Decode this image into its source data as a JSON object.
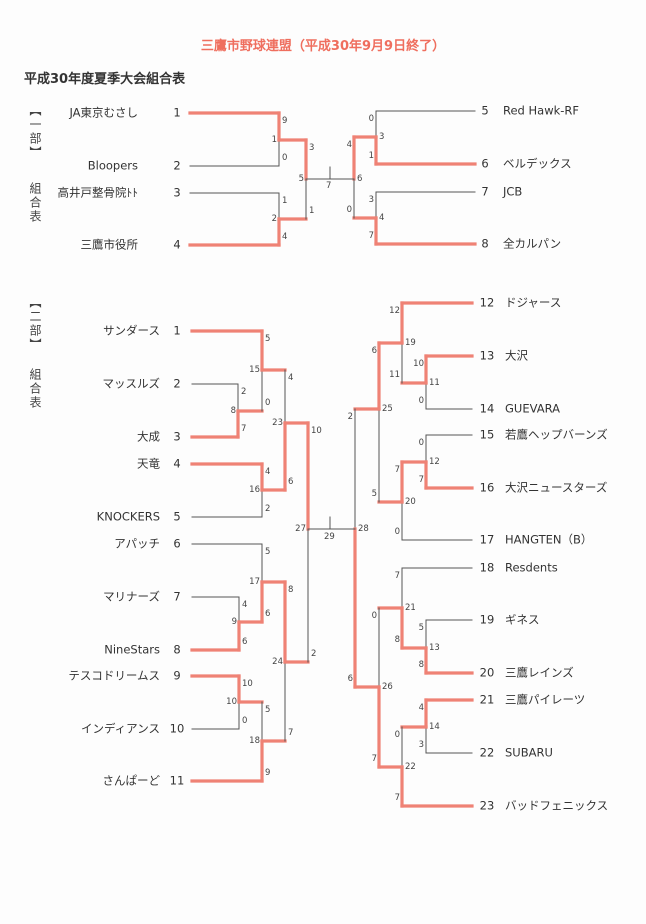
{
  "title": "三鷹市野球連盟（平成30年9月9日終了）",
  "subtitle": "平成30年度夏季大会組合表",
  "colors": {
    "winner_line": "#ef8275",
    "line": "#555555",
    "title": "#ef6e5e"
  },
  "division1": {
    "label": "【一部】",
    "label2": "組合表",
    "left_teams": [
      {
        "seed": "1",
        "name": "JA東京むさし"
      },
      {
        "seed": "2",
        "name": "Bloopers"
      },
      {
        "seed": "3",
        "name": "高井戸整骨院ﾄﾄ"
      },
      {
        "seed": "4",
        "name": "三鷹市役所"
      }
    ],
    "right_teams": [
      {
        "seed": "5",
        "name": "Red  Hawk-RF"
      },
      {
        "seed": "6",
        "name": "ベルデックス"
      },
      {
        "seed": "7",
        "name": "JCB"
      },
      {
        "seed": "8",
        "name": "全カルパン"
      }
    ],
    "matches": [
      {
        "no": "1",
        "s1": "9",
        "s2": "0"
      },
      {
        "no": "2",
        "s1": "1",
        "s2": "4"
      },
      {
        "no": "5",
        "s1": "3",
        "s2": "1"
      },
      {
        "no": "3",
        "s1": "0",
        "s2": "1"
      },
      {
        "no": "4",
        "s1": "3",
        "s2": "7"
      },
      {
        "no": "6",
        "s1": "4",
        "s2": "0"
      }
    ],
    "final_no": "7"
  },
  "division2": {
    "label": "【二部】",
    "label2": "組合表",
    "left_teams": [
      {
        "seed": "1",
        "name": "サンダース"
      },
      {
        "seed": "2",
        "name": "マッスルズ"
      },
      {
        "seed": "3",
        "name": "大成"
      },
      {
        "seed": "4",
        "name": "天竜"
      },
      {
        "seed": "5",
        "name": "KNOCKERS"
      },
      {
        "seed": "6",
        "name": "アパッチ"
      },
      {
        "seed": "7",
        "name": "マリナーズ"
      },
      {
        "seed": "8",
        "name": "NineStars"
      },
      {
        "seed": "9",
        "name": "テスコドリームス"
      },
      {
        "seed": "10",
        "name": "インディアンス"
      },
      {
        "seed": "11",
        "name": "さんぱーど"
      }
    ],
    "right_teams": [
      {
        "seed": "12",
        "name": "ドジャース"
      },
      {
        "seed": "13",
        "name": "大沢"
      },
      {
        "seed": "14",
        "name": "GUEVARA"
      },
      {
        "seed": "15",
        "name": "若鷹ヘップバーンズ"
      },
      {
        "seed": "16",
        "name": "大沢ニュースターズ"
      },
      {
        "seed": "17",
        "name": "HANGTEN（B）"
      },
      {
        "seed": "18",
        "name": "Resdents"
      },
      {
        "seed": "19",
        "name": "ギネス"
      },
      {
        "seed": "20",
        "name": "三鷹レインズ"
      },
      {
        "seed": "21",
        "name": "三鷹パイレーツ"
      },
      {
        "seed": "22",
        "name": "SUBARU"
      },
      {
        "seed": "23",
        "name": "バッドフェニックス"
      }
    ],
    "matches": [
      {
        "no": "8",
        "s1": "2",
        "s2": "7"
      },
      {
        "no": "15",
        "s1": "5",
        "s2": "0"
      },
      {
        "no": "16",
        "s1": "4",
        "s2": "2"
      },
      {
        "no": "23",
        "s1": "4",
        "s2": "6"
      },
      {
        "no": "9",
        "s1": "4",
        "s2": "6"
      },
      {
        "no": "17",
        "s1": "5",
        "s2": "6"
      },
      {
        "no": "10",
        "s1": "10",
        "s2": "0"
      },
      {
        "no": "18",
        "s1": "5",
        "s2": "9"
      },
      {
        "no": "24",
        "s1": "8",
        "s2": "7"
      },
      {
        "no": "27",
        "s1": "10",
        "s2": "2"
      },
      {
        "no": "11",
        "s1": "10",
        "s2": "0"
      },
      {
        "no": "19",
        "s1": "12",
        "s2": "11"
      },
      {
        "no": "12",
        "s1": "0",
        "s2": "7"
      },
      {
        "no": "20",
        "s1": "7",
        "s2": "0"
      },
      {
        "no": "25",
        "s1": "6",
        "s2": "5"
      },
      {
        "no": "13",
        "s1": "5",
        "s2": "8"
      },
      {
        "no": "21",
        "s1": "7",
        "s2": "8"
      },
      {
        "no": "14",
        "s1": "4",
        "s2": "3"
      },
      {
        "no": "22",
        "s1": "0",
        "s2": "7"
      },
      {
        "no": "26",
        "s1": "0",
        "s2": "7"
      },
      {
        "no": "28",
        "s1": "2",
        "s2": "6"
      }
    ],
    "final_no": "29"
  }
}
